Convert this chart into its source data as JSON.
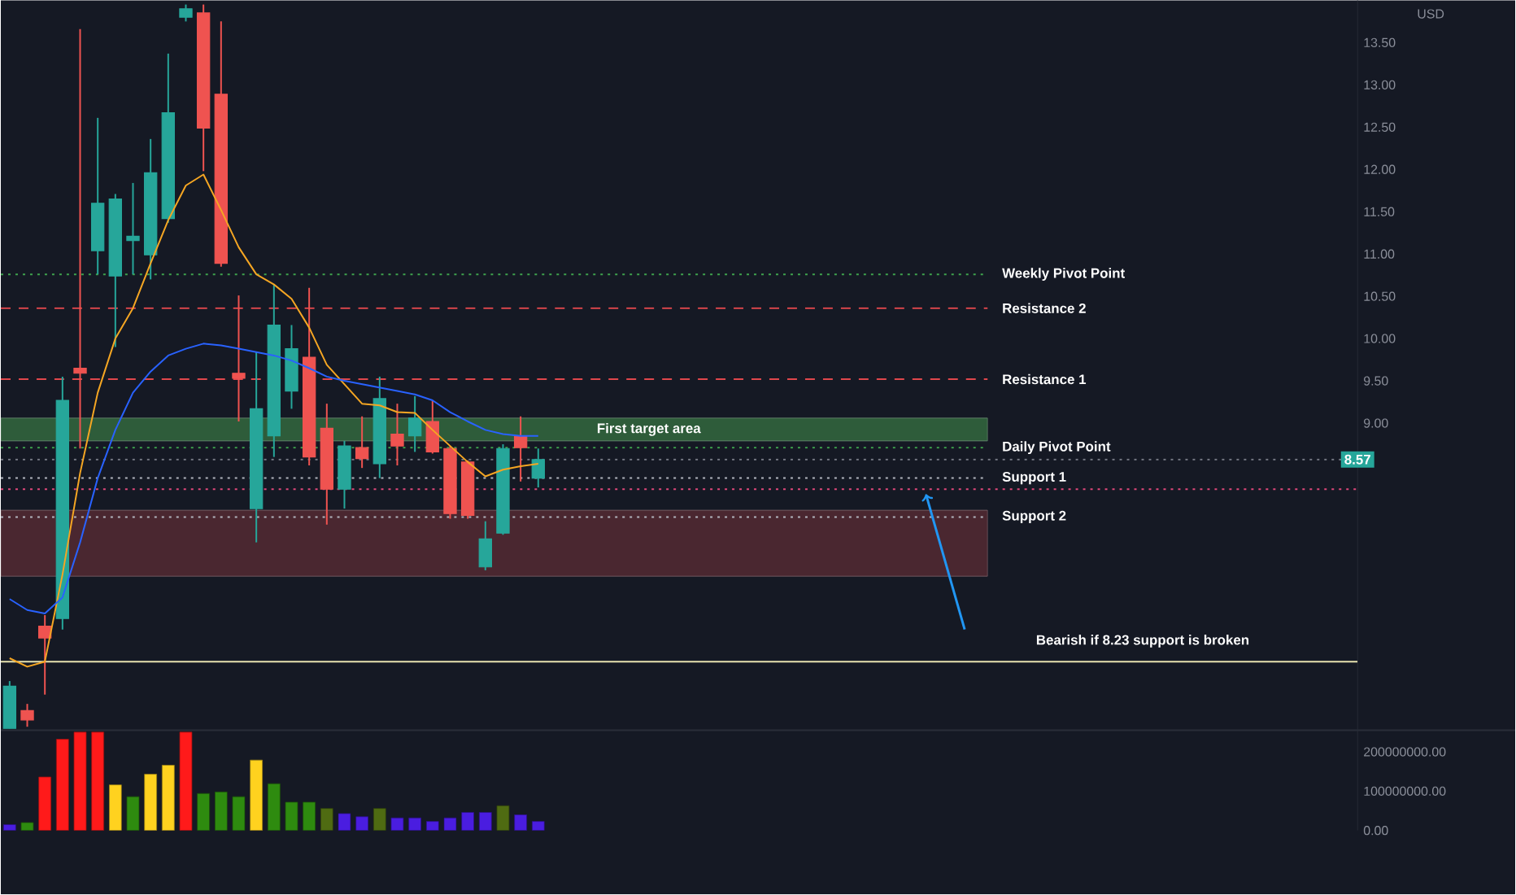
{
  "chart_data": [
    {
      "type": "candlestick",
      "ylabel": "USD",
      "categories": [
        null,
        null,
        null,
        null,
        null,
        null,
        null,
        null,
        null,
        null,
        null,
        null,
        null,
        null,
        null,
        null,
        null,
        null,
        null,
        null,
        null,
        null,
        null,
        null,
        null,
        null,
        null,
        null,
        null,
        null,
        null,
        null,
        null,
        null,
        null,
        null,
        null,
        null,
        null,
        null,
        null,
        null,
        null,
        null,
        null,
        null,
        null,
        null,
        null,
        null,
        null,
        null,
        null,
        null,
        null,
        null,
        null,
        null,
        null,
        null,
        null,
        null,
        null,
        null,
        null,
        null,
        null,
        null,
        null,
        null,
        null,
        null,
        null,
        null,
        null,
        null,
        null
      ],
      "ohlc": [
        [
          5.39,
          5.95,
          5.39,
          5.89
        ],
        [
          5.6,
          5.68,
          5.41,
          5.49
        ],
        [
          6.6,
          6.73,
          5.79,
          6.46
        ],
        [
          6.69,
          9.55,
          6.56,
          9.27
        ],
        [
          9.65,
          13.66,
          8.7,
          9.59
        ],
        [
          11.04,
          12.61,
          10.76,
          11.6
        ],
        [
          10.74,
          11.71,
          9.9,
          11.65
        ],
        [
          11.16,
          11.84,
          10.76,
          11.21
        ],
        [
          10.99,
          12.36,
          10.7,
          11.96
        ],
        [
          11.42,
          13.37,
          11.37,
          12.67
        ],
        [
          13.8,
          13.95,
          13.75,
          13.9
        ],
        [
          13.85,
          13.95,
          11.98,
          12.49
        ],
        [
          12.89,
          13.75,
          10.85,
          10.89
        ],
        [
          9.59,
          10.51,
          9.02,
          9.53
        ],
        [
          7.99,
          9.84,
          7.59,
          9.17
        ],
        [
          8.85,
          10.64,
          8.6,
          10.16
        ],
        [
          9.38,
          10.16,
          9.17,
          9.88
        ],
        [
          9.78,
          10.6,
          8.5,
          8.6
        ],
        [
          8.94,
          9.23,
          7.8,
          8.22
        ],
        [
          8.22,
          8.79,
          7.99,
          8.73
        ],
        [
          8.71,
          9.08,
          8.47,
          8.58
        ],
        [
          8.52,
          9.55,
          8.35,
          9.29
        ],
        [
          8.87,
          9.23,
          8.5,
          8.73
        ],
        [
          8.85,
          9.32,
          8.66,
          9.06
        ],
        [
          9.02,
          9.27,
          8.64,
          8.66
        ],
        [
          8.7,
          8.73,
          7.87,
          7.93
        ],
        [
          8.54,
          8.56,
          7.87,
          7.91
        ],
        [
          7.3,
          7.84,
          7.26,
          7.63
        ],
        [
          7.7,
          8.75,
          7.68,
          8.7
        ],
        [
          8.85,
          9.08,
          8.31,
          8.71
        ],
        [
          8.35,
          8.7,
          8.24,
          8.57
        ],
        null,
        null,
        null,
        null,
        null,
        null,
        null,
        null,
        null,
        null,
        null,
        null,
        null,
        null,
        null,
        null,
        null,
        null,
        null,
        null,
        null,
        null,
        null,
        null,
        null,
        null,
        null,
        null,
        null,
        null,
        null,
        null,
        null,
        null,
        null,
        null,
        null,
        null,
        null,
        null,
        null,
        null,
        null,
        null,
        null,
        null
      ],
      "series": [
        {
          "type": "line",
          "color": "#f5a623",
          "values": [
            6.22,
            6.12,
            6.18,
            7.21,
            8.41,
            9.36,
            10.0,
            10.36,
            10.89,
            11.4,
            11.81,
            11.94,
            11.52,
            11.08,
            10.76,
            10.64,
            10.47,
            10.13,
            9.69,
            9.46,
            9.23,
            9.21,
            9.13,
            9.12,
            8.92,
            8.73,
            8.54,
            8.37,
            8.45,
            8.49,
            8.52,
            null,
            null,
            null,
            null,
            null,
            null,
            null,
            null,
            null,
            null,
            null,
            null,
            null,
            null,
            null,
            null,
            null,
            null,
            null,
            null,
            null,
            null,
            null,
            null,
            null,
            null,
            null,
            null,
            null,
            null,
            null,
            null,
            null,
            null,
            null,
            null,
            null,
            null,
            null,
            null,
            null,
            null,
            null,
            null,
            null,
            null
          ]
        },
        {
          "type": "line",
          "color": "#2962ff",
          "values": [
            6.92,
            6.79,
            6.75,
            6.94,
            7.59,
            8.35,
            8.92,
            9.36,
            9.61,
            9.8,
            9.88,
            9.94,
            9.92,
            9.88,
            9.84,
            9.8,
            9.74,
            9.65,
            9.55,
            9.5,
            9.46,
            9.42,
            9.38,
            9.34,
            9.27,
            9.13,
            9.02,
            8.92,
            8.87,
            8.85,
            8.85,
            null,
            null,
            null,
            null,
            null,
            null,
            null,
            null,
            null,
            null,
            null,
            null,
            null,
            null,
            null,
            null,
            null,
            null,
            null,
            null,
            null,
            null,
            null,
            null,
            null,
            null,
            null,
            null,
            null,
            null,
            null,
            null,
            null,
            null,
            null,
            null,
            null,
            null,
            null,
            null,
            null,
            null,
            null,
            null,
            null,
            null
          ]
        }
      ],
      "ylim": [
        5.35,
        14.0
      ],
      "yticks": [
        {
          "value": 9,
          "label": "9.00"
        },
        {
          "value": 9.5,
          "label": "9.50"
        },
        {
          "value": 10,
          "label": "10.00"
        },
        {
          "value": 10.5,
          "label": "10.50"
        },
        {
          "value": 11,
          "label": "11.00"
        },
        {
          "value": 11.5,
          "label": "11.50"
        },
        {
          "value": 12,
          "label": "12.00"
        },
        {
          "value": 12.5,
          "label": "12.50"
        },
        {
          "value": 13,
          "label": "13.00"
        },
        {
          "value": 13.5,
          "label": "13.50"
        }
      ],
      "ref_lines": [
        {
          "axis": "y",
          "value": 10.76,
          "label": "Weekly Pivot Point",
          "color": "#3fa34d",
          "line_style": "dotted"
        },
        {
          "axis": "y",
          "value": 10.36,
          "label": "Resistance 2",
          "color": "#e0474c",
          "line_style": "dashed"
        },
        {
          "axis": "y",
          "value": 9.52,
          "label": "Resistance 1",
          "color": "#e0474c",
          "line_style": "dashed"
        },
        {
          "axis": "y",
          "value": 8.71,
          "label": "Daily Pivot Point",
          "color": "#3fa34d",
          "line_style": "dotted"
        },
        {
          "axis": "y",
          "value": 8.57,
          "color": "#787b86",
          "line_style": "dotted"
        },
        {
          "axis": "y",
          "value": 8.35,
          "label": "Support 1",
          "color": "#b2b5be",
          "line_style": "dotted"
        },
        {
          "axis": "y",
          "value": 8.22,
          "color": "#e0477a",
          "line_style": "dotted"
        },
        {
          "axis": "y",
          "value": 7.89,
          "label": "Support 2",
          "color": "#b2b5be",
          "line_style": "dotted"
        },
        {
          "axis": "y",
          "value": 6.18,
          "color": "#e8e3b0",
          "line_style": "solid"
        }
      ],
      "bands": [
        {
          "axis": "y",
          "from": 8.79,
          "to": 9.06,
          "label": "First target area",
          "color": "#2e5c3a"
        },
        {
          "axis": "y",
          "from": 7.19,
          "to": 7.97,
          "color": "#4a2730"
        }
      ],
      "annotations": [
        {
          "text": "8.57",
          "y": 8.57
        },
        "Bearish if 8.23 support is broken"
      ]
    },
    {
      "type": "bar",
      "categories": [
        null,
        null,
        null,
        null,
        null,
        null,
        null,
        null,
        null,
        null,
        null,
        null,
        null,
        null,
        null,
        null,
        null,
        null,
        null,
        null,
        null,
        null,
        null,
        null,
        null,
        null,
        null,
        null,
        null,
        null,
        null,
        null,
        null,
        null,
        null,
        null,
        null,
        null,
        null,
        null,
        null,
        null,
        null,
        null,
        null,
        null,
        null,
        null,
        null,
        null,
        null,
        null,
        null,
        null,
        null,
        null,
        null,
        null,
        null,
        null,
        null,
        null,
        null,
        null,
        null,
        null,
        null,
        null,
        null,
        null,
        null,
        null,
        null,
        null,
        null,
        null,
        null
      ],
      "values": [
        15000000,
        20000000,
        136000000,
        232000000,
        250000000,
        250000000,
        116000000,
        86000000,
        143000000,
        166000000,
        250000000,
        94000000,
        98000000,
        86000000,
        179000000,
        119000000,
        72000000,
        72000000,
        56000000,
        43000000,
        35000000,
        56000000,
        32000000,
        32000000,
        23000000,
        32000000,
        46000000,
        46000000,
        63000000,
        40000000,
        23000000,
        null,
        null,
        null,
        null,
        null,
        null,
        null,
        null,
        null,
        null,
        null,
        null,
        null,
        null,
        null,
        null,
        null,
        null,
        null,
        null,
        null,
        null,
        null,
        null,
        null,
        null,
        null,
        null,
        null,
        null,
        null,
        null,
        null,
        null,
        null,
        null,
        null,
        null,
        null,
        null,
        null,
        null,
        null,
        null,
        null,
        null
      ],
      "colors": [
        "#4a1de0",
        "#2e8b0f",
        "#ff1a1a",
        "#ff1a1a",
        "#ff1a1a",
        "#ff1a1a",
        "#ffd21f",
        "#2e8b0f",
        "#ffd21f",
        "#ffd21f",
        "#ff1a1a",
        "#2e8b0f",
        "#2e8b0f",
        "#2e8b0f",
        "#ffd21f",
        "#2e8b0f",
        "#2e8b0f",
        "#2e8b0f",
        "#4f6b12",
        "#4a1de0",
        "#4a1de0",
        "#4f6b12",
        "#4a1de0",
        "#4a1de0",
        "#4a1de0",
        "#4a1de0",
        "#4a1de0",
        "#4a1de0",
        "#4f6b12",
        "#4a1de0",
        "#4a1de0",
        null,
        null,
        null,
        null,
        null,
        null,
        null,
        null,
        null,
        null,
        null,
        null,
        null,
        null,
        null,
        null,
        null,
        null,
        null,
        null,
        null,
        null,
        null,
        null,
        null,
        null,
        null,
        null,
        null,
        null,
        null,
        null,
        null,
        null,
        null,
        null,
        null,
        null,
        null,
        null,
        null,
        null,
        null,
        null,
        null,
        null
      ],
      "ylim": [
        0,
        255000000
      ],
      "yticks": [
        {
          "value": 0,
          "label": "0.00"
        },
        {
          "value": 100000000,
          "label": "100000000.00"
        },
        {
          "value": 200000000,
          "label": "200000000.00"
        }
      ]
    }
  ]
}
